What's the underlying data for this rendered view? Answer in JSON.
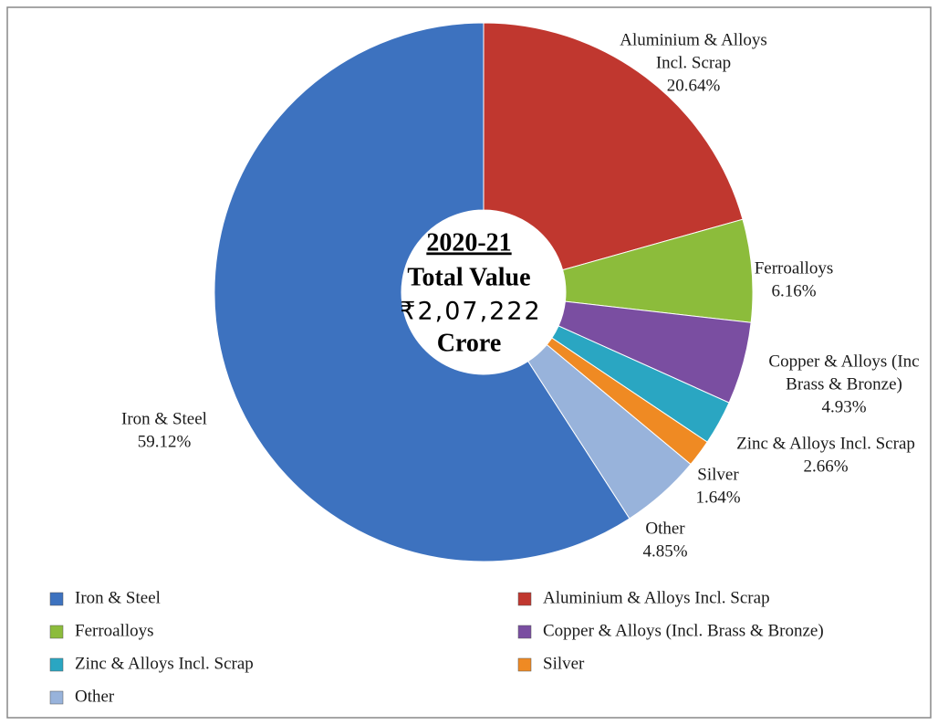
{
  "chart_data": {
    "type": "donut",
    "categories": [
      "Iron & Steel",
      "Aluminium & Alloys Incl. Scrap",
      "Ferroalloys",
      "Copper & Alloys (Incl. Brass & Bronze)",
      "Zinc & Alloys Incl. Scrap",
      "Silver",
      "Other"
    ],
    "labels": [
      [
        "Iron & Steel"
      ],
      [
        "Aluminium & Alloys",
        "Incl. Scrap"
      ],
      [
        "Ferroalloys"
      ],
      [
        "Copper & Alloys (Inc",
        "Brass & Bronze)"
      ],
      [
        "Zinc & Alloys Incl. Scrap"
      ],
      [
        "Silver"
      ],
      [
        "Other"
      ]
    ],
    "values": [
      59.12,
      20.64,
      6.16,
      4.93,
      2.66,
      1.64,
      4.85
    ],
    "value_labels": [
      "59.12%",
      "20.64%",
      "6.16%",
      "4.93%",
      "2.66%",
      "1.64%",
      "4.85%"
    ],
    "colors": [
      "#3d72bf",
      "#c0372f",
      "#8cbc3b",
      "#7a4ea1",
      "#2aa6c2",
      "#ef8a23",
      "#98b3db"
    ],
    "center_text": [
      "2020-21",
      "Total Value",
      "₹2,07,222",
      "Crore"
    ],
    "legend": "bottom"
  }
}
